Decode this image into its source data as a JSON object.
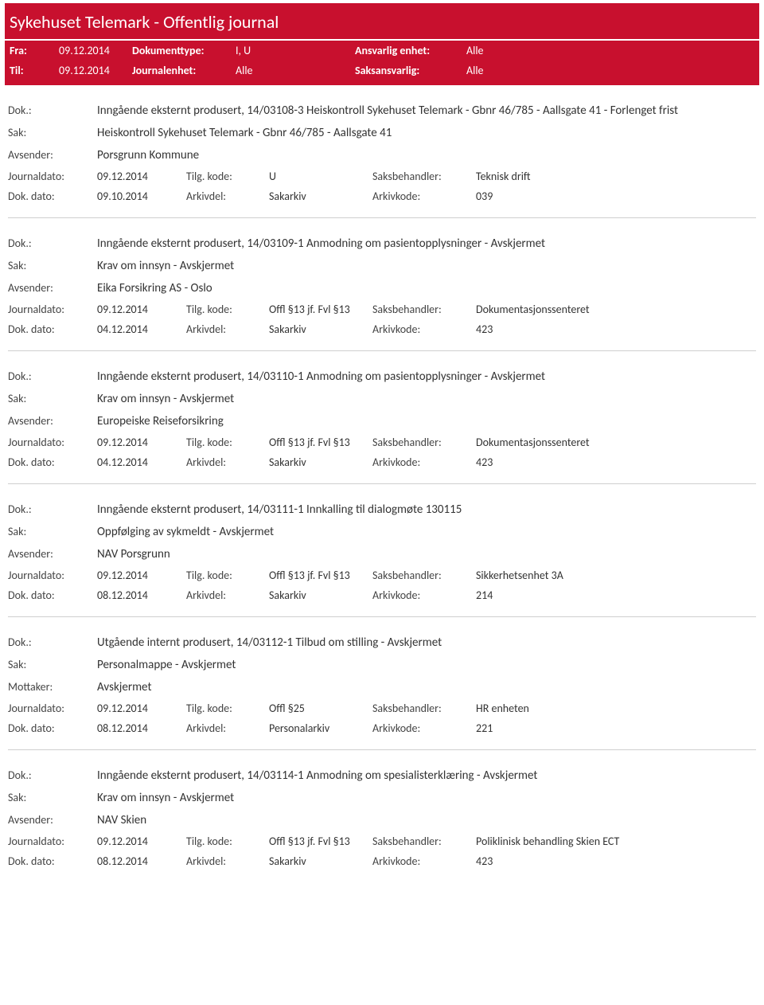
{
  "header": {
    "title": "Sykehuset Telemark - Offentlig journal"
  },
  "filter": {
    "fra_label": "Fra:",
    "fra_value": "09.12.2014",
    "til_label": "Til:",
    "til_value": "09.12.2014",
    "doktype_label": "Dokumenttype:",
    "doktype_value": "I, U",
    "journalenhet_label": "Journalenhet:",
    "journalenhet_value": "Alle",
    "ansvarlig_label": "Ansvarlig enhet:",
    "ansvarlig_value": "Alle",
    "saksansvarlig_label": "Saksansvarlig:",
    "saksansvarlig_value": "Alle"
  },
  "labels": {
    "dok": "Dok.:",
    "sak": "Sak:",
    "avsender": "Avsender:",
    "mottaker": "Mottaker:",
    "journaldato": "Journaldato:",
    "dokdato": "Dok. dato:",
    "tilgkode": "Tilg. kode:",
    "arkivdel": "Arkivdel:",
    "saksbehandler": "Saksbehandler:",
    "arkivkode": "Arkivkode:"
  },
  "entries": [
    {
      "dok": "Inngående eksternt produsert, 14/03108-3 Heiskontroll Sykehuset Telemark - Gbnr 46/785 - Aallsgate 41 - Forlenget frist",
      "sak": "Heiskontroll Sykehuset Telemark - Gbnr 46/785 - Aallsgate 41",
      "party_label": "Avsender:",
      "party": "Porsgrunn Kommune",
      "journaldato": "09.12.2014",
      "dokdato": "09.10.2014",
      "tilgkode": "U",
      "arkivdel": "Sakarkiv",
      "saksbehandler": "Teknisk drift",
      "arkivkode": "039"
    },
    {
      "dok": "Inngående eksternt produsert, 14/03109-1 Anmodning om pasientopplysninger - Avskjermet",
      "sak": "Krav om innsyn - Avskjermet",
      "party_label": "Avsender:",
      "party": "Eika Forsikring AS - Oslo",
      "journaldato": "09.12.2014",
      "dokdato": "04.12.2014",
      "tilgkode": "Offl §13 jf. Fvl §13",
      "arkivdel": "Sakarkiv",
      "saksbehandler": "Dokumentasjonssenteret",
      "arkivkode": "423"
    },
    {
      "dok": "Inngående eksternt produsert, 14/03110-1 Anmodning om pasientopplysninger - Avskjermet",
      "sak": "Krav om innsyn - Avskjermet",
      "party_label": "Avsender:",
      "party": "Europeiske Reiseforsikring",
      "journaldato": "09.12.2014",
      "dokdato": "04.12.2014",
      "tilgkode": "Offl §13 jf. Fvl §13",
      "arkivdel": "Sakarkiv",
      "saksbehandler": "Dokumentasjonssenteret",
      "arkivkode": "423"
    },
    {
      "dok": "Inngående eksternt produsert, 14/03111-1 Innkalling til dialogmøte 130115",
      "sak": "Oppfølging av sykmeldt - Avskjermet",
      "party_label": "Avsender:",
      "party": "NAV Porsgrunn",
      "journaldato": "09.12.2014",
      "dokdato": "08.12.2014",
      "tilgkode": "Offl §13 jf. Fvl §13",
      "arkivdel": "Sakarkiv",
      "saksbehandler": "Sikkerhetsenhet 3A",
      "arkivkode": "214"
    },
    {
      "dok": "Utgående internt produsert, 14/03112-1 Tilbud om stilling - Avskjermet",
      "sak": "Personalmappe - Avskjermet",
      "party_label": "Mottaker:",
      "party": "Avskjermet",
      "journaldato": "09.12.2014",
      "dokdato": "08.12.2014",
      "tilgkode": "Offl §25",
      "arkivdel": "Personalarkiv",
      "saksbehandler": "HR enheten",
      "arkivkode": "221"
    },
    {
      "dok": "Inngående eksternt produsert, 14/03114-1 Anmodning om spesialisterklæring - Avskjermet",
      "sak": "Krav om innsyn - Avskjermet",
      "party_label": "Avsender:",
      "party": "NAV Skien",
      "journaldato": "09.12.2014",
      "dokdato": "08.12.2014",
      "tilgkode": "Offl §13 jf. Fvl §13",
      "arkivdel": "Sakarkiv",
      "saksbehandler": "Poliklinisk behandling Skien ECT",
      "arkivkode": "423"
    }
  ]
}
